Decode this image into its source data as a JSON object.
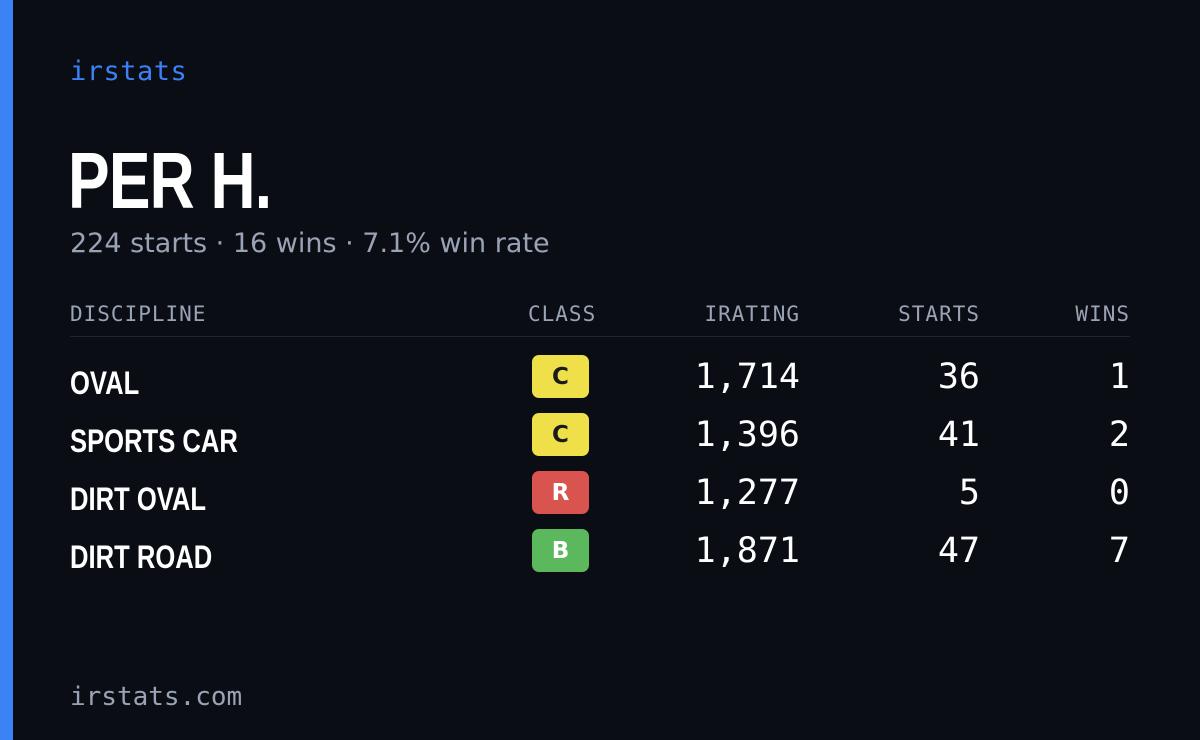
{
  "brand": "irstats",
  "player": {
    "name": "PER H.",
    "summary": "224 starts · 16 wins · 7.1% win rate"
  },
  "table": {
    "headers": {
      "discipline": "DISCIPLINE",
      "class": "CLASS",
      "irating": "IRATING",
      "starts": "STARTS",
      "wins": "WINS"
    },
    "rows": [
      {
        "discipline": "OVAL",
        "class": "C",
        "class_color": "#efe04a",
        "class_text_color": "#1a1a1a",
        "irating": "1,714",
        "starts": "36",
        "wins": "1"
      },
      {
        "discipline": "SPORTS CAR",
        "class": "C",
        "class_color": "#efe04a",
        "class_text_color": "#1a1a1a",
        "irating": "1,396",
        "starts": "41",
        "wins": "2"
      },
      {
        "discipline": "DIRT OVAL",
        "class": "R",
        "class_color": "#d9534f",
        "class_text_color": "#ffffff",
        "irating": "1,277",
        "starts": "5",
        "wins": "0"
      },
      {
        "discipline": "DIRT ROAD",
        "class": "B",
        "class_color": "#5cb85c",
        "class_text_color": "#ffffff",
        "irating": "1,871",
        "starts": "47",
        "wins": "7"
      }
    ]
  },
  "footer": "irstats.com",
  "colors": {
    "accent": "#3b82f6",
    "background": "#0a0d14",
    "muted_text": "#9aa3b5"
  }
}
